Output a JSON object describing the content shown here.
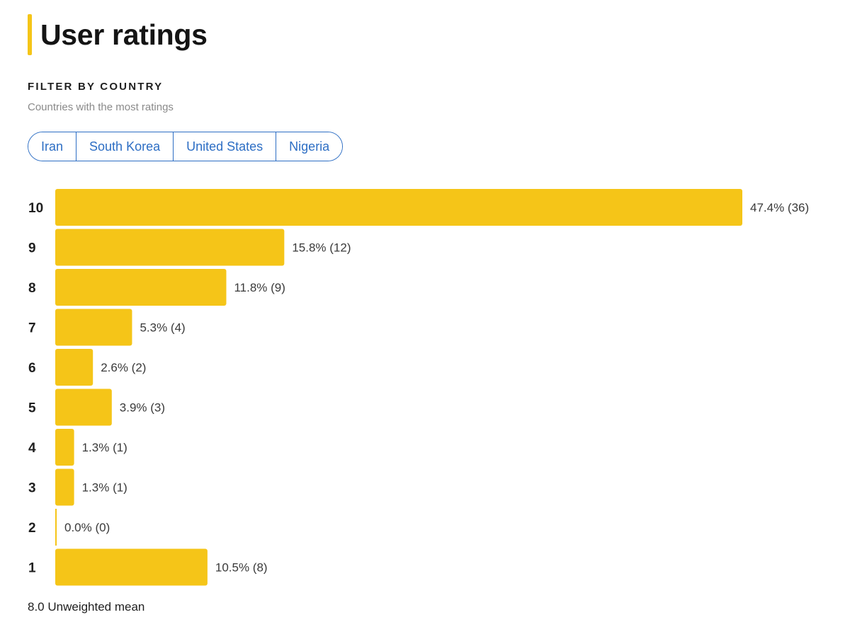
{
  "header": {
    "title": "User ratings"
  },
  "filter": {
    "heading": "FILTER BY COUNTRY",
    "subtitle": "Countries with the most ratings",
    "countries": [
      "Iran",
      "South Korea",
      "United States",
      "Nigeria"
    ]
  },
  "colors": {
    "accent": "#f5c518",
    "link": "#2d6ec4"
  },
  "chart_data": {
    "type": "bar",
    "orientation": "horizontal",
    "title": "User ratings",
    "categories": [
      "10",
      "9",
      "8",
      "7",
      "6",
      "5",
      "4",
      "3",
      "2",
      "1"
    ],
    "percentages": [
      47.4,
      15.8,
      11.8,
      5.3,
      2.6,
      3.9,
      1.3,
      1.3,
      0.0,
      10.5
    ],
    "counts": [
      36,
      12,
      9,
      4,
      2,
      3,
      1,
      1,
      0,
      8
    ],
    "value_labels": [
      "47.4% (36)",
      "15.8% (12)",
      "11.8% (9)",
      "5.3% (4)",
      "2.6% (2)",
      "3.9% (3)",
      "1.3% (1)",
      "1.3% (1)",
      "0.0% (0)",
      "10.5% (8)"
    ],
    "xlabel": "",
    "ylabel": "",
    "legend": "none",
    "grid": false
  },
  "summary": {
    "mean_text": "8.0 Unweighted mean"
  }
}
